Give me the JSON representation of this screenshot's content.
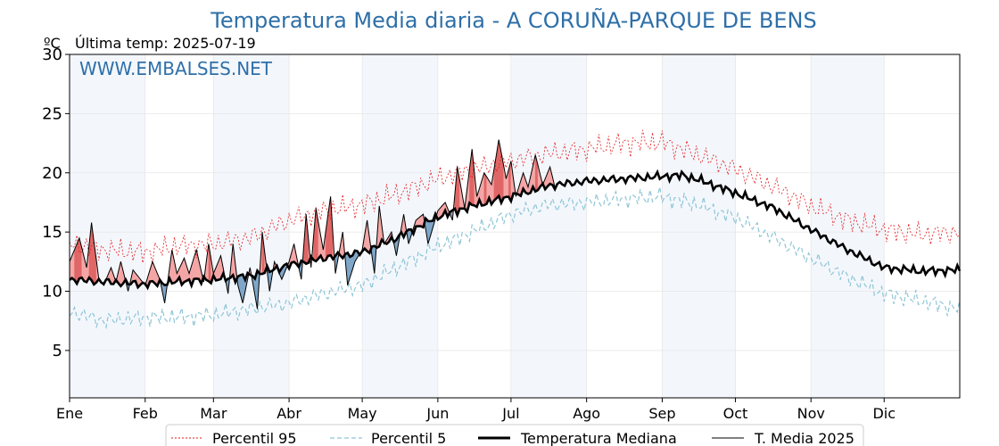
{
  "title": "Temperatura Media diaria - A CORUÑA-PARQUE DE BENS",
  "unit_label": "ºC",
  "subtitle": "Última temp: 2025-07-19",
  "watermark": "WWW.EMBALSES.NET",
  "colors": {
    "title": "#2e6fa8",
    "p95": "#e31a1c",
    "p5": "#8ec5d6",
    "median": "#000000",
    "current": "#000000",
    "above_fill": "#f4a6a6",
    "above_fill_dark": "#e06666",
    "below_fill": "#7fa6c8",
    "month_band": "#f3f7fc"
  },
  "chart_data": {
    "type": "line",
    "x_unit": "day of year",
    "ylim": [
      1,
      30
    ],
    "yticks": [
      5,
      10,
      15,
      20,
      25,
      30
    ],
    "months": [
      "Ene",
      "Feb",
      "Mar",
      "Abr",
      "May",
      "Jun",
      "Jul",
      "Ago",
      "Sep",
      "Oct",
      "Nov",
      "Dic"
    ],
    "month_start_days": [
      1,
      32,
      60,
      91,
      121,
      152,
      182,
      213,
      244,
      274,
      305,
      335
    ],
    "grid": true,
    "legend_position": "bottom",
    "series": [
      {
        "name": "Percentil 95",
        "style": "dotted-red",
        "anchors_day": [
          1,
          15,
          32,
          45,
          60,
          75,
          91,
          105,
          121,
          135,
          152,
          166,
          182,
          197,
          213,
          228,
          244,
          259,
          274,
          290,
          305,
          320,
          335,
          350,
          366
        ],
        "anchors_value": [
          14.0,
          13.5,
          13.3,
          13.8,
          14.0,
          14.5,
          16.0,
          16.8,
          17.3,
          18.2,
          19.5,
          20.3,
          21.0,
          21.6,
          22.0,
          22.5,
          22.6,
          21.5,
          20.3,
          18.8,
          17.2,
          16.0,
          15.2,
          14.8,
          15.0
        ]
      },
      {
        "name": "Percentil 5",
        "style": "dashed-lightblue",
        "anchors_day": [
          1,
          15,
          32,
          45,
          60,
          75,
          91,
          105,
          121,
          135,
          152,
          166,
          182,
          197,
          213,
          228,
          244,
          259,
          274,
          290,
          305,
          320,
          335,
          350,
          366
        ],
        "anchors_value": [
          8.3,
          7.5,
          7.8,
          7.8,
          8.0,
          8.5,
          9.0,
          9.8,
          10.5,
          12.0,
          13.8,
          15.0,
          16.5,
          17.3,
          17.5,
          17.8,
          18.0,
          17.3,
          16.2,
          14.5,
          12.8,
          11.2,
          9.8,
          9.2,
          8.5
        ]
      },
      {
        "name": "Temperatura Mediana",
        "style": "solid-thick-black",
        "anchors_day": [
          1,
          15,
          32,
          45,
          60,
          75,
          91,
          105,
          121,
          135,
          152,
          166,
          182,
          197,
          213,
          228,
          244,
          252,
          259,
          274,
          290,
          305,
          320,
          335,
          350,
          366
        ],
        "anchors_value": [
          11.0,
          10.8,
          10.6,
          10.8,
          11.0,
          11.3,
          12.2,
          12.8,
          13.3,
          14.5,
          16.3,
          17.2,
          18.0,
          18.9,
          19.3,
          19.5,
          19.7,
          19.8,
          19.4,
          18.3,
          17.0,
          15.2,
          13.5,
          12.0,
          11.7,
          11.8
        ]
      },
      {
        "name": "T. Media 2025",
        "style": "solid-thin-black",
        "last_day": 200,
        "anchors_day": [
          1,
          5,
          8,
          10,
          13,
          15,
          18,
          20,
          22,
          25,
          27,
          32,
          35,
          38,
          40,
          43,
          45,
          48,
          50,
          53,
          56,
          58,
          60,
          63,
          66,
          68,
          70,
          72,
          75,
          78,
          80,
          83,
          85,
          88,
          91,
          93,
          96,
          98,
          100,
          102,
          105,
          108,
          110,
          113,
          115,
          118,
          121,
          123,
          126,
          128,
          130,
          133,
          135,
          138,
          140,
          143,
          146,
          148,
          152,
          155,
          158,
          160,
          163,
          166,
          168,
          171,
          174,
          177,
          180,
          182,
          184,
          187,
          189,
          192,
          195,
          198,
          200
        ],
        "anchors_value": [
          12.5,
          14.5,
          12.0,
          15.8,
          11.0,
          10.5,
          12.0,
          10.8,
          12.5,
          10.0,
          11.8,
          10.5,
          12.5,
          11.0,
          9.0,
          13.5,
          11.5,
          12.8,
          11.5,
          13.5,
          10.8,
          14.0,
          11.5,
          13.0,
          9.8,
          14.0,
          10.5,
          9.0,
          12.0,
          8.5,
          15.0,
          10.0,
          12.5,
          11.0,
          12.5,
          14.0,
          11.0,
          16.5,
          12.0,
          17.0,
          13.5,
          18.0,
          11.5,
          15.0,
          10.5,
          12.5,
          13.5,
          16.0,
          11.5,
          17.2,
          14.0,
          15.0,
          13.0,
          16.5,
          14.0,
          16.0,
          16.5,
          14.0,
          16.8,
          17.5,
          16.0,
          20.5,
          17.0,
          22.0,
          18.0,
          20.0,
          19.0,
          22.8,
          19.5,
          21.0,
          18.0,
          20.0,
          18.8,
          21.5,
          19.0,
          20.5,
          18.8
        ]
      }
    ]
  },
  "legend": {
    "p95": "Percentil 95",
    "p5": "Percentil 5",
    "median": "Temperatura Mediana",
    "current": "T. Media 2025"
  }
}
